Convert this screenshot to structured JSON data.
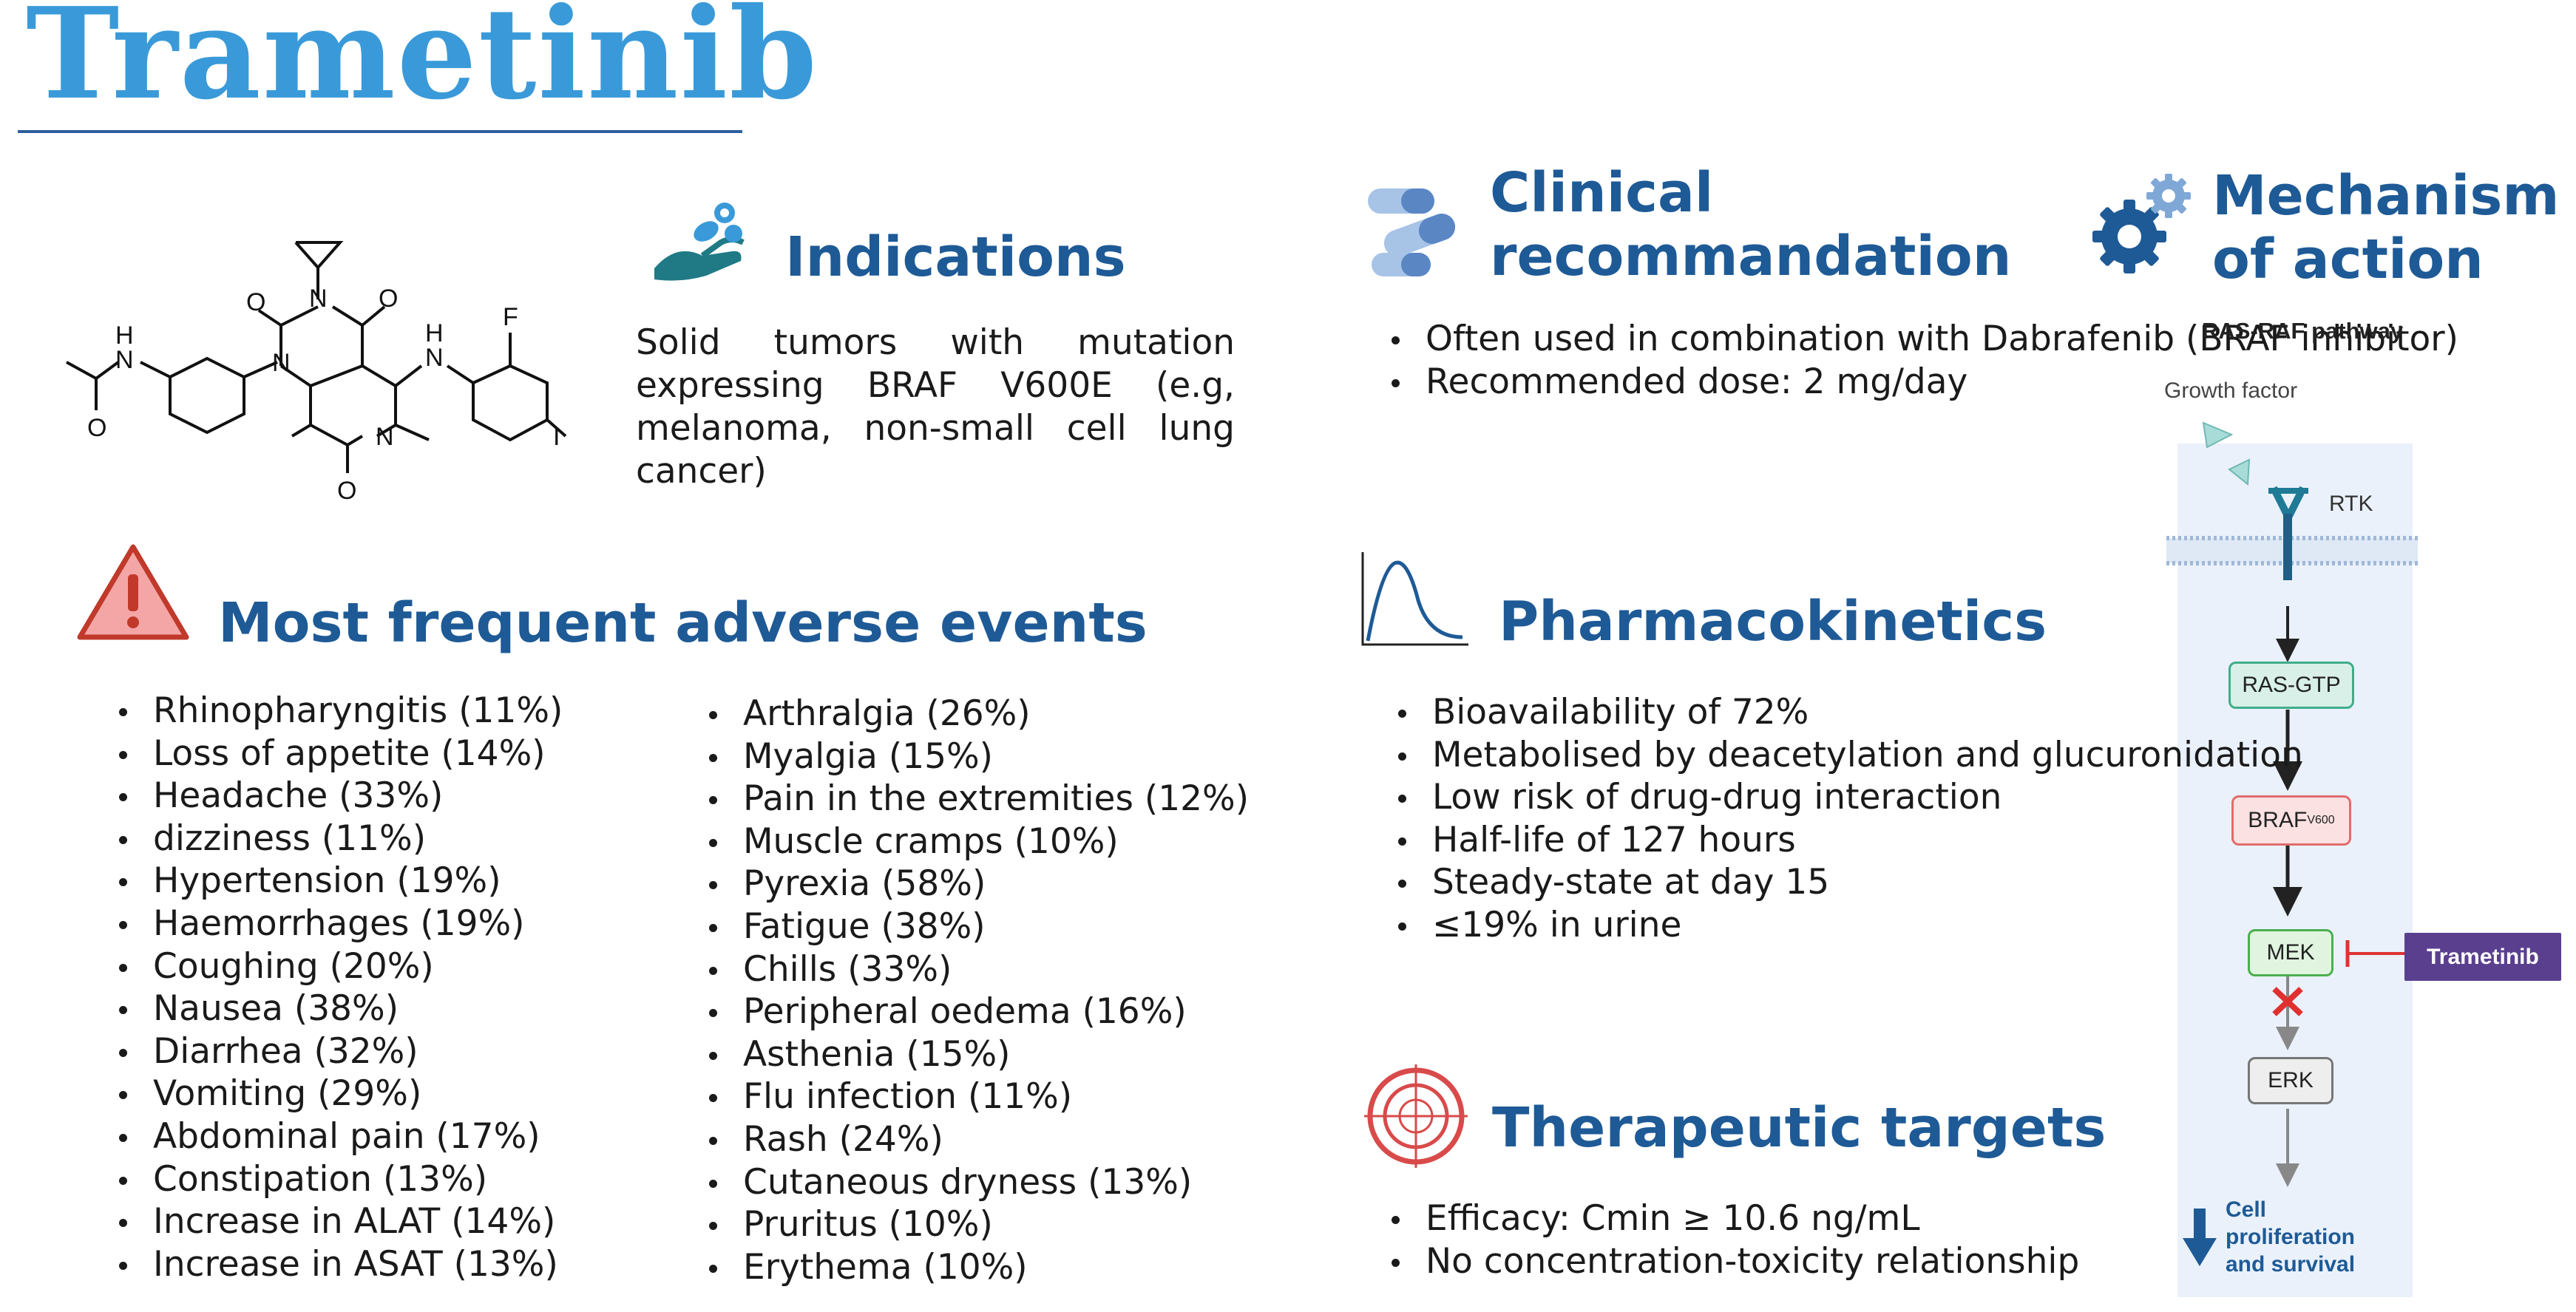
{
  "title": "Trametinib",
  "indications": {
    "heading": "Indications",
    "text": "Solid tumors with mutation expressing BRAF V600E (e.g, melanoma, non-small cell lung cancer)"
  },
  "clinical": {
    "heading_line1": "Clinical",
    "heading_line2": "recommandation",
    "items": [
      "Often used in combination with Dabrafenib (BRAF inhibitor)",
      "Recommended dose: 2 mg/day"
    ]
  },
  "mechanism": {
    "heading_line1": "Mechanism",
    "heading_line2": "of action",
    "pathway_title": "RAS-RAF pathway",
    "growth_factor": "Growth factor",
    "rtk": "RTK",
    "ras": "RAS-GTP",
    "braf": "BRAF",
    "braf_sup": "V600",
    "mek": "MEK",
    "erk": "ERK",
    "inhibitor": "Trametinib",
    "outcome_line1": "Cell",
    "outcome_line2": "proliferation",
    "outcome_line3": "and survival",
    "colors": {
      "ras": "#3fae8a",
      "braf": "#e06c6c",
      "mek": "#4caf50",
      "erk": "#777777",
      "inhibitor_bg": "#5b3f8f",
      "outcome": "#1e5a96"
    }
  },
  "adverse": {
    "heading": "Most frequent adverse events",
    "col1": [
      "Rhinopharyngitis (11%)",
      "Loss of appetite (14%)",
      "Headache (33%)",
      "dizziness (11%)",
      "Hypertension (19%)",
      "Haemorrhages (19%)",
      "Coughing (20%)",
      "Nausea (38%)",
      "Diarrhea (32%)",
      "Vomiting (29%)",
      "Abdominal pain (17%)",
      "Constipation (13%)",
      "Increase in ALAT (14%)",
      "Increase in ASAT (13%)"
    ],
    "col2": [
      "Arthralgia (26%)",
      "Myalgia (15%)",
      "Pain in the extremities (12%)",
      "Muscle cramps (10%)",
      "Pyrexia (58%)",
      "Fatigue (38%)",
      "Chills (33%)",
      "Peripheral oedema (16%)",
      "Asthenia (15%)",
      "Flu infection (11%)",
      "Rash (24%)",
      "Cutaneous dryness (13%)",
      "Pruritus (10%)",
      "Erythema (10%)"
    ]
  },
  "pk": {
    "heading": "Pharmacokinetics",
    "items": [
      "Bioavailability of 72%",
      "Metabolised by deacetylation and glucuronidation",
      "Low risk of drug-drug interaction",
      "Half-life of 127 hours",
      "Steady-state at day 15",
      "≤19% in urine"
    ]
  },
  "targets": {
    "heading": "Therapeutic targets",
    "items": [
      "Efficacy: Cmin  ≥ 10.6 ng/mL",
      "No concentration-toxicity relationship"
    ]
  },
  "molecule": {
    "atoms": {
      "O": "O",
      "N": "N",
      "H": "H",
      "F": "F",
      "I": "I"
    }
  },
  "icons": [
    "hand-pills-icon",
    "capsules-icon",
    "gears-icon",
    "warning-icon",
    "pk-curve-icon",
    "target-icon"
  ]
}
